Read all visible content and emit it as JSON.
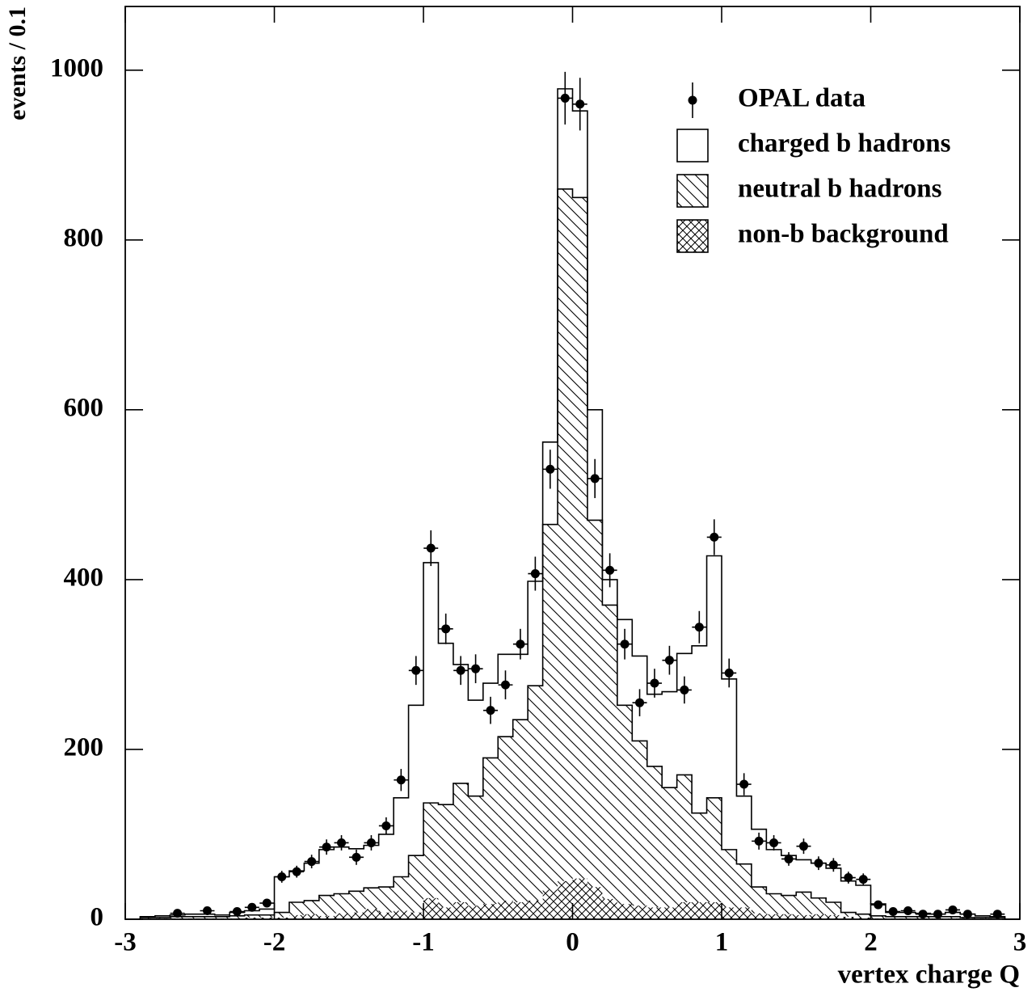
{
  "chart_data": {
    "type": "histogram",
    "x_label": "vertex charge Q",
    "y_label": "events / 0.1",
    "xlim": [
      -3,
      3
    ],
    "ylim": [
      0,
      1075
    ],
    "xticks": [
      -3,
      -2,
      -1,
      0,
      1,
      2,
      3
    ],
    "yticks": [
      0,
      200,
      400,
      600,
      800,
      1000
    ],
    "grid": false,
    "legend": "upper right",
    "bins": [
      -3,
      -2.9,
      -2.8,
      -2.7,
      -2.6,
      -2.5,
      -2.4,
      -2.3,
      -2.2,
      -2.1,
      -2,
      -1.9,
      -1.8,
      -1.7,
      -1.6,
      -1.5,
      -1.4,
      -1.3,
      -1.2,
      -1.1,
      -1,
      -0.9,
      -0.8,
      -0.7,
      -0.6,
      -0.5,
      -0.4,
      -0.3,
      -0.2,
      -0.1,
      0,
      0.1,
      0.2,
      0.3,
      0.4,
      0.5,
      0.6,
      0.7,
      0.8,
      0.9,
      1,
      1.1,
      1.2,
      1.3,
      1.4,
      1.5,
      1.6,
      1.7,
      1.8,
      1.9,
      2,
      2.1,
      2.2,
      2.3,
      2.4,
      2.5,
      2.6,
      2.7,
      2.8,
      2.9,
      3
    ],
    "data": {
      "name": "OPAL data",
      "color": "#000000",
      "x": [
        -2.65,
        -2.45,
        -2.25,
        -2.15,
        -2.05,
        -1.95,
        -1.85,
        -1.75,
        -1.65,
        -1.55,
        -1.45,
        -1.35,
        -1.25,
        -1.15,
        -1.05,
        -0.95,
        -0.85,
        -0.75,
        -0.65,
        -0.55,
        -0.45,
        -0.35,
        -0.25,
        -0.15,
        -0.05,
        0.05,
        0.15,
        0.25,
        0.35,
        0.45,
        0.55,
        0.65,
        0.75,
        0.85,
        0.95,
        1.05,
        1.15,
        1.25,
        1.35,
        1.45,
        1.55,
        1.65,
        1.75,
        1.85,
        1.95,
        2.05,
        2.15,
        2.25,
        2.35,
        2.45,
        2.55,
        2.65,
        2.85
      ],
      "values": [
        7,
        10,
        9,
        14,
        19,
        50,
        56,
        68,
        85,
        90,
        73,
        90,
        110,
        164,
        293,
        437,
        342,
        293,
        295,
        246,
        276,
        324,
        407,
        530,
        967,
        960,
        519,
        411,
        324,
        255,
        278,
        305,
        270,
        344,
        450,
        290,
        159,
        92,
        90,
        71,
        86,
        66,
        64,
        49,
        47,
        17,
        9,
        10,
        6,
        6,
        11,
        6,
        6
      ],
      "errors": [
        3,
        3,
        3,
        4,
        4,
        7,
        7,
        8,
        9,
        9,
        9,
        9,
        10,
        13,
        17,
        21,
        18,
        17,
        17,
        16,
        17,
        18,
        20,
        23,
        31,
        31,
        23,
        20,
        18,
        16,
        17,
        17,
        16,
        19,
        21,
        17,
        13,
        10,
        9,
        8,
        9,
        8,
        8,
        7,
        7,
        4,
        3,
        3,
        2,
        2,
        3,
        2,
        2
      ]
    },
    "series": [
      {
        "name": "charged b hadrons",
        "fill": "white",
        "values": [
          0,
          1,
          2,
          2,
          3,
          3,
          2,
          4,
          5,
          7,
          42,
          37,
          44,
          54,
          55,
          50,
          50,
          62,
          93,
          177,
          283,
          190,
          140,
          113,
          88,
          97,
          77,
          123,
          97,
          118,
          102,
          130,
          30,
          101,
          100,
          85,
          113,
          143,
          197,
          285,
          201,
          80,
          68,
          52,
          47,
          38,
          41,
          40,
          37,
          34,
          14,
          5,
          5,
          4,
          3,
          5,
          4,
          2,
          1,
          0
        ]
      },
      {
        "name": "neutral b hadrons",
        "fill": "hatch",
        "values": [
          0,
          1,
          1,
          2,
          2,
          2,
          2,
          3,
          3,
          3,
          6,
          15,
          16,
          24,
          23,
          25,
          25,
          30,
          40,
          67,
          112,
          121,
          140,
          129,
          172,
          193,
          215,
          253,
          430,
          815,
          802,
          432,
          346,
          234,
          194,
          166,
          141,
          150,
          105,
          123,
          68,
          51,
          31,
          24,
          22,
          27,
          19,
          15,
          5,
          4,
          3,
          2,
          2,
          2,
          2,
          2,
          1,
          1,
          1,
          0
        ]
      },
      {
        "name": "non-b background",
        "fill": "crosshatch",
        "values": [
          0,
          1,
          1,
          1,
          1,
          1,
          1,
          1,
          2,
          2,
          2,
          5,
          6,
          4,
          7,
          8,
          12,
          8,
          10,
          8,
          25,
          14,
          20,
          16,
          18,
          22,
          20,
          22,
          35,
          45,
          48,
          38,
          24,
          18,
          16,
          14,
          14,
          20,
          20,
          20,
          14,
          14,
          7,
          6,
          6,
          5,
          6,
          5,
          3,
          2,
          1,
          1,
          1,
          1,
          1,
          1,
          1,
          1,
          1,
          0
        ]
      }
    ]
  }
}
